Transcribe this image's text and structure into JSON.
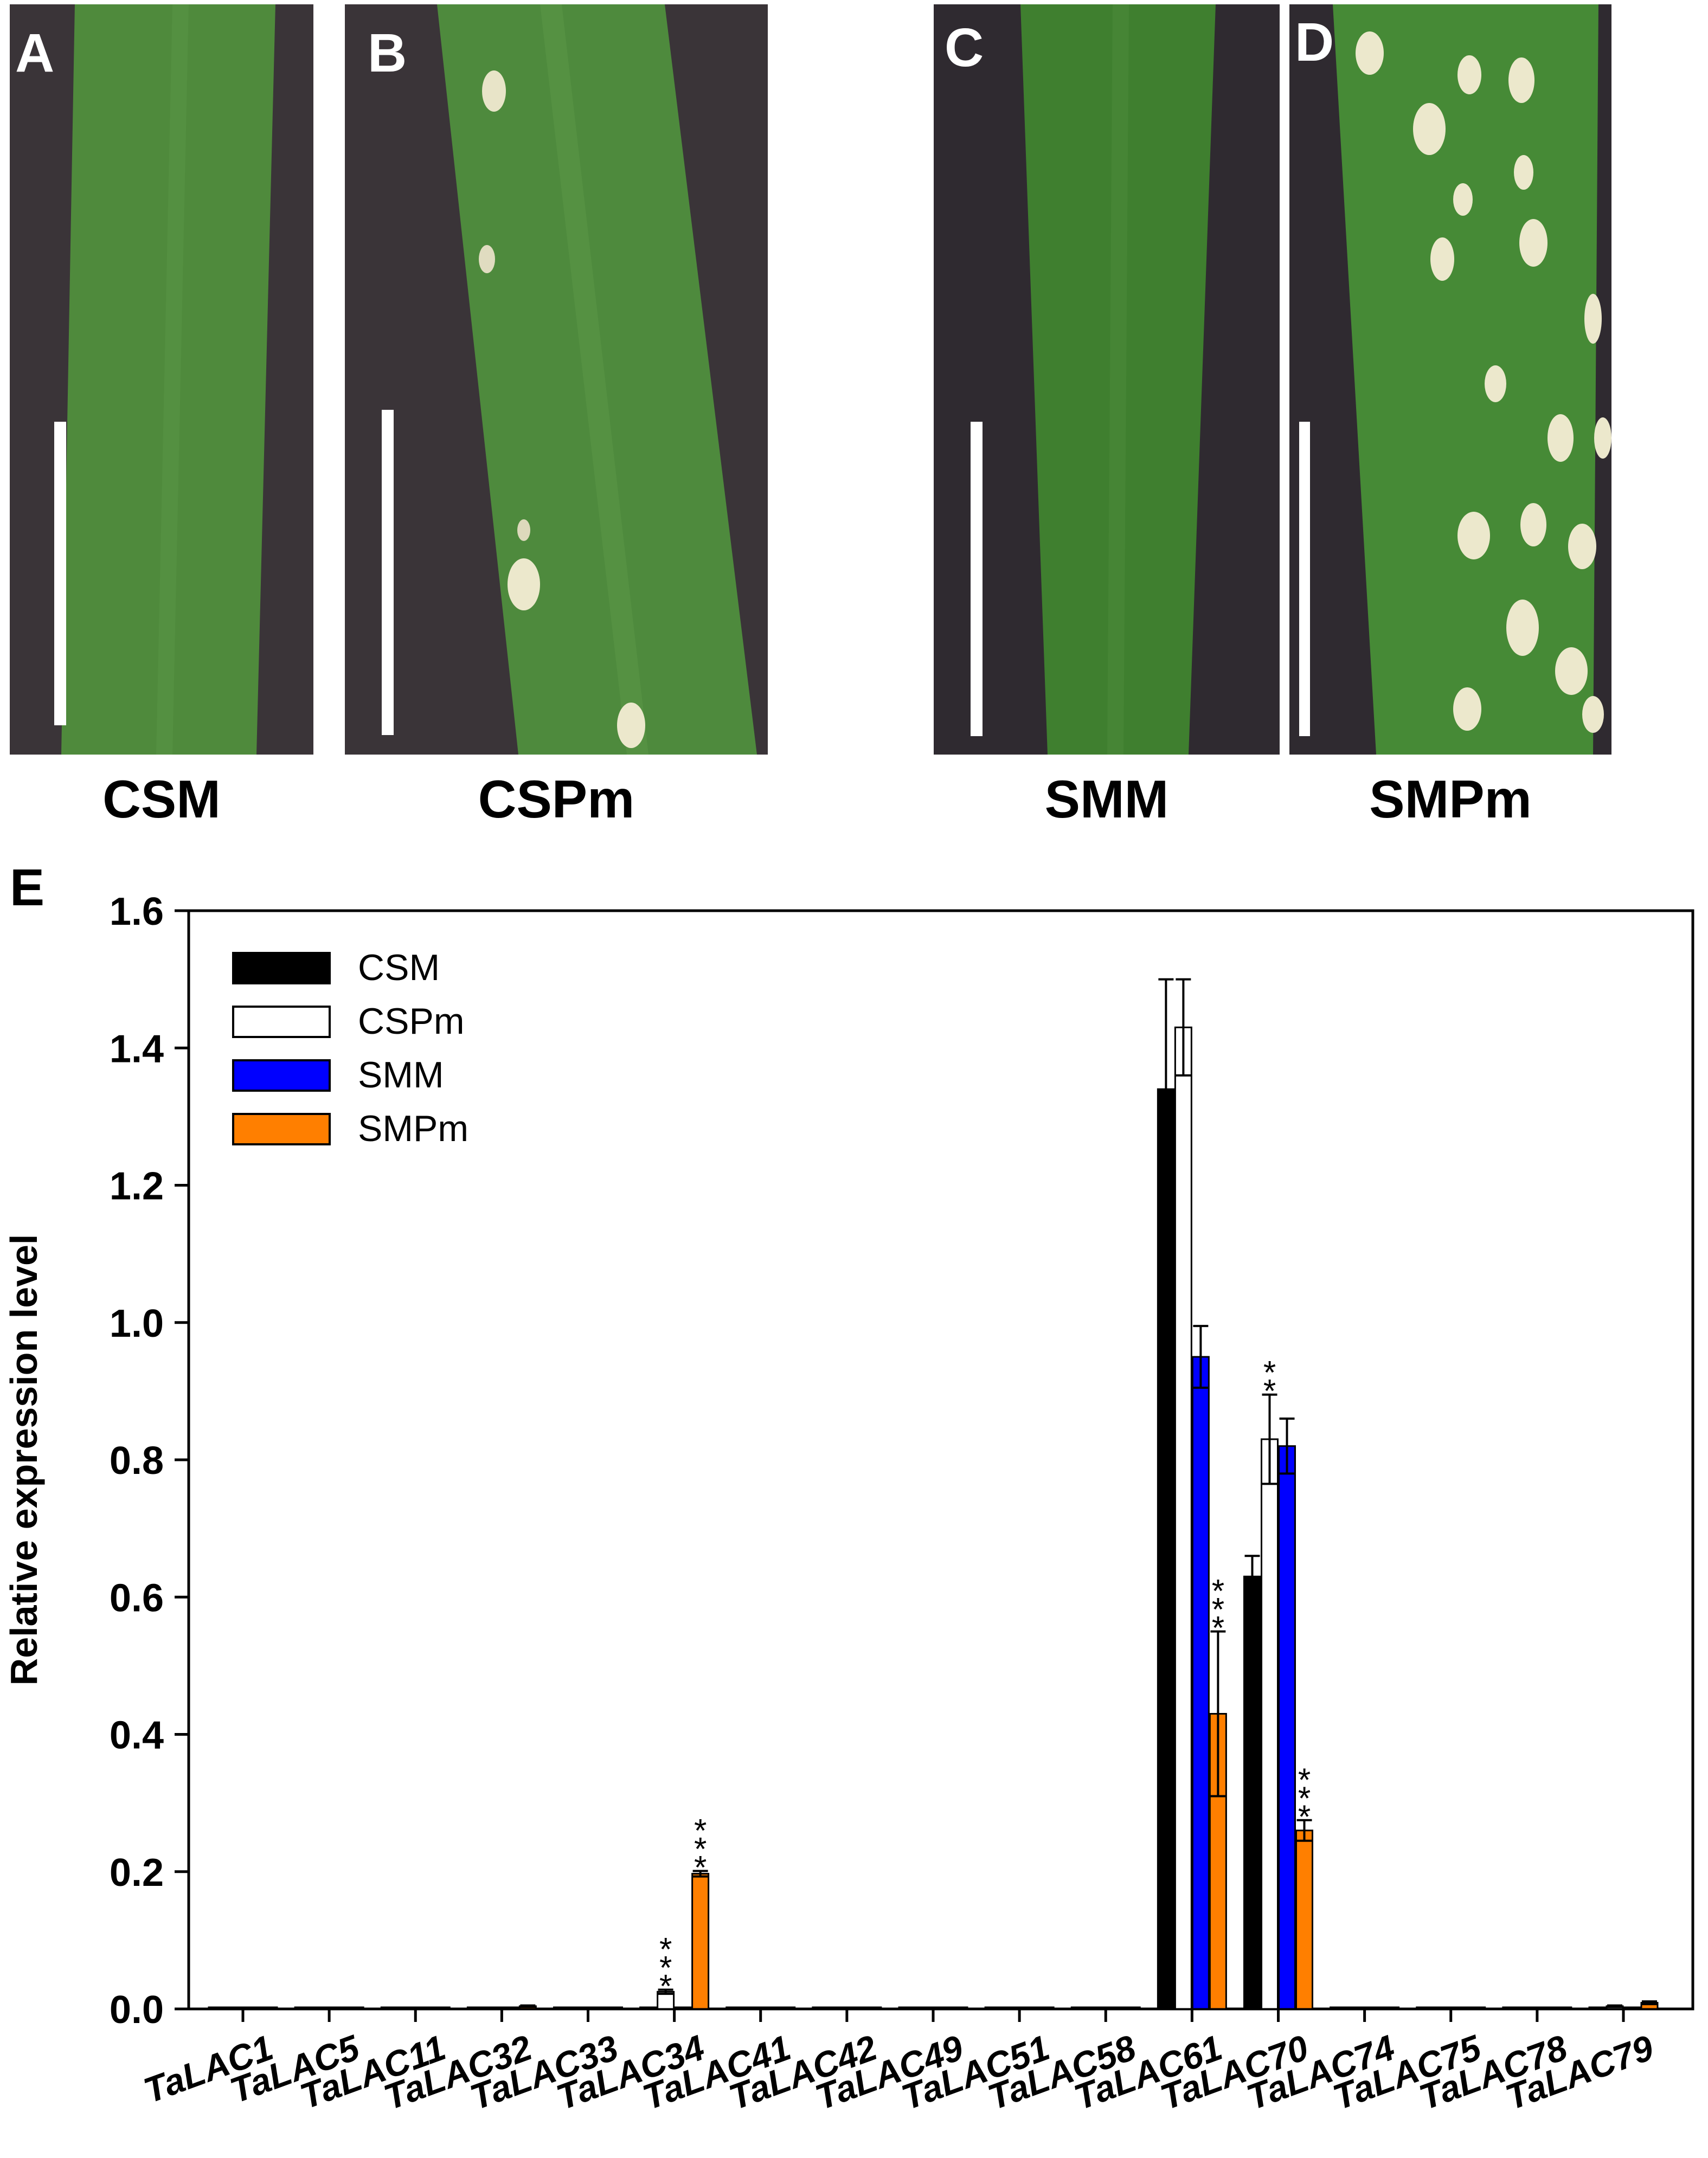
{
  "panels": [
    {
      "label": "A",
      "caption": "CSM"
    },
    {
      "label": "B",
      "caption": "CSPm"
    },
    {
      "label": "C",
      "caption": "SMM"
    },
    {
      "label": "D",
      "caption": "SMPm"
    }
  ],
  "colors": {
    "CSM": "#000000",
    "CSPm": "#ffffff",
    "SMM": "#0000ff",
    "SMPm": "#ff7f00",
    "leaf": "#4f8a3c",
    "background": "#3a3438"
  },
  "chart_data": {
    "panel_label": "E",
    "type": "bar",
    "ylabel": "Relative expression level",
    "ylim": [
      0,
      1.6
    ],
    "yticks": [
      "0.0",
      "0.2",
      "0.4",
      "0.6",
      "0.8",
      "1.0",
      "1.2",
      "1.4",
      "1.6"
    ],
    "legend_position": "top-left",
    "categories": [
      "TaLAC1",
      "TaLAC5",
      "TaLAC11",
      "TaLAC32",
      "TaLAC33",
      "TaLAC34",
      "TaLAC41",
      "TaLAC42",
      "TaLAC49",
      "TaLAC51",
      "TaLAC58",
      "TaLAC61",
      "TaLAC70",
      "TaLAC74",
      "TaLAC75",
      "TaLAC78",
      "TaLAC79"
    ],
    "series": [
      {
        "name": "CSM",
        "values": [
          0.001,
          0.001,
          0.001,
          0.001,
          0.001,
          0.001,
          0.001,
          0.001,
          0.001,
          0.001,
          0.001,
          1.34,
          0.63,
          0.001,
          0.001,
          0.001,
          0.002
        ],
        "errors": [
          0,
          0,
          0,
          0,
          0,
          0,
          0,
          0,
          0,
          0,
          0,
          0.16,
          0.03,
          0,
          0,
          0,
          0
        ]
      },
      {
        "name": "CSPm",
        "values": [
          0.001,
          0.001,
          0.001,
          0.001,
          0.001,
          0.025,
          0.001,
          0.001,
          0.001,
          0.001,
          0.001,
          1.43,
          0.83,
          0.001,
          0.001,
          0.001,
          0.004
        ],
        "errors": [
          0,
          0,
          0,
          0,
          0,
          0.003,
          0,
          0,
          0,
          0,
          0,
          0.07,
          0.065,
          0,
          0,
          0,
          0.001
        ]
      },
      {
        "name": "SMM",
        "values": [
          0.001,
          0.001,
          0.001,
          0.001,
          0.001,
          0.001,
          0.001,
          0.001,
          0.001,
          0.001,
          0.001,
          0.95,
          0.82,
          0.001,
          0.001,
          0.001,
          0.002
        ],
        "errors": [
          0,
          0,
          0,
          0,
          0,
          0,
          0,
          0,
          0,
          0,
          0,
          0.045,
          0.04,
          0,
          0,
          0,
          0
        ]
      },
      {
        "name": "SMPm",
        "values": [
          0.001,
          0.001,
          0.001,
          0.004,
          0.001,
          0.197,
          0.001,
          0.001,
          0.001,
          0.001,
          0.001,
          0.43,
          0.26,
          0.001,
          0.001,
          0.001,
          0.009
        ],
        "errors": [
          0,
          0,
          0,
          0.001,
          0,
          0.004,
          0,
          0,
          0,
          0,
          0,
          0.12,
          0.015,
          0,
          0,
          0,
          0.002
        ]
      }
    ],
    "annotations": [
      {
        "category": "TaLAC34",
        "series": "CSPm",
        "text": "***"
      },
      {
        "category": "TaLAC34",
        "series": "SMPm",
        "text": "***"
      },
      {
        "category": "TaLAC61",
        "series": "SMPm",
        "text": "***"
      },
      {
        "category": "TaLAC70",
        "series": "CSPm",
        "text": "**"
      },
      {
        "category": "TaLAC70",
        "series": "SMPm",
        "text": "***"
      }
    ]
  }
}
